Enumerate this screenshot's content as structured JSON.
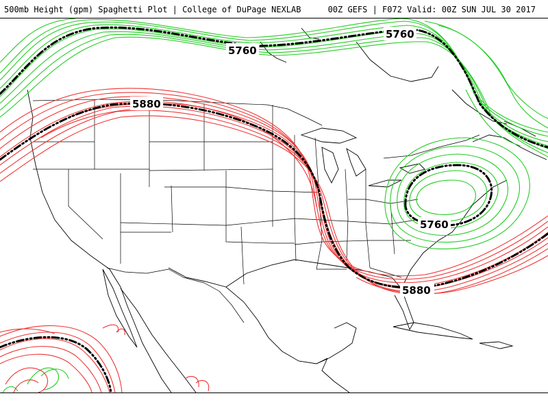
{
  "header": {
    "title": "500mb Height (gpm) Spaghetti Plot | College of DuPage NEXLAB",
    "run_info": "00Z GEFS | F072 Valid: 00Z SUN JUL 30 2017"
  },
  "colors": {
    "contour_5760": "#22cc22",
    "contour_5880": "#ee3333",
    "ensemble_mean": "#000000",
    "land_outline": "#000000",
    "background": "#ffffff"
  },
  "contours": {
    "label_5760": "5760",
    "label_5880": "5880"
  }
}
